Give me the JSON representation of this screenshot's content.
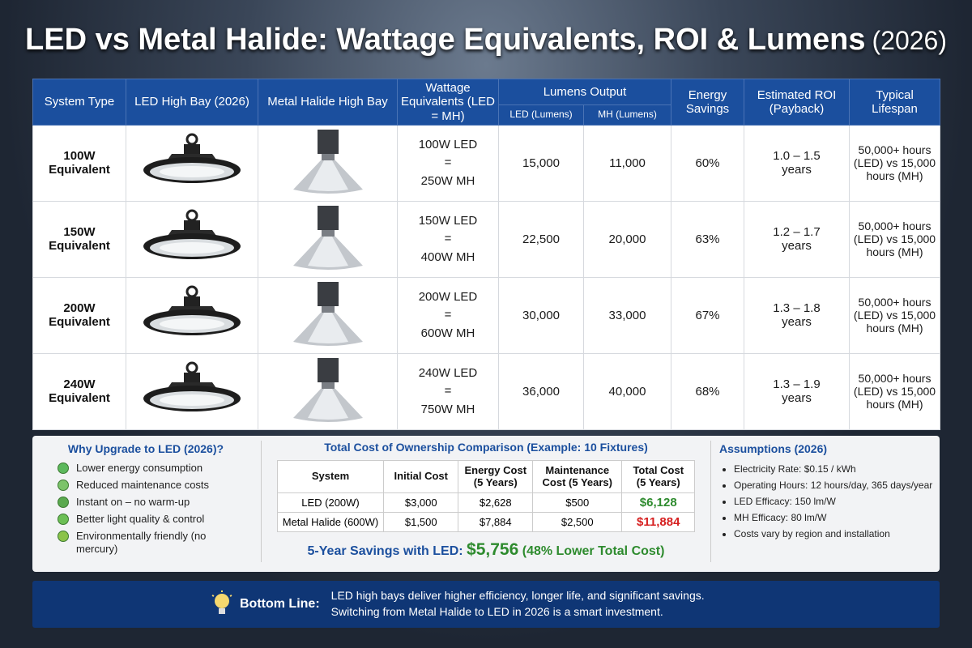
{
  "header": {
    "title": "LED vs Metal Halide: Wattage Equivalents, ROI & Lumens",
    "year": "(2026)"
  },
  "table": {
    "headers": {
      "system": "System Type",
      "led": "LED High Bay (2026)",
      "mh": "Metal Halide High Bay",
      "wattage": "Wattage Equivalents (LED = MH)",
      "lumens": "Lumens Output",
      "led_lumens": "LED (Lumens)",
      "mh_lumens": "MH (Lumens)",
      "savings": "Energy Savings",
      "roi": "Estimated ROI (Payback)",
      "lifespan": "Typical Lifespan"
    },
    "rows": [
      {
        "system": "100W Equivalent",
        "led_watts": "100W LED",
        "equals": "=",
        "mh_watts": "250W MH",
        "led_lumens": "15,000",
        "mh_lumens": "11,000",
        "savings": "60%",
        "roi": "1.0 – 1.5 years",
        "lifespan": "50,000+ hours (LED) vs 15,000 hours (MH)"
      },
      {
        "system": "150W Equivalent",
        "led_watts": "150W LED",
        "equals": "=",
        "mh_watts": "400W MH",
        "led_lumens": "22,500",
        "mh_lumens": "20,000",
        "savings": "63%",
        "roi": "1.2 – 1.7 years",
        "lifespan": "50,000+ hours (LED) vs 15,000 hours (MH)"
      },
      {
        "system": "200W Equivalent",
        "led_watts": "200W LED",
        "equals": "=",
        "mh_watts": "600W MH",
        "led_lumens": "30,000",
        "mh_lumens": "33,000",
        "savings": "67%",
        "roi": "1.3 – 1.8 years",
        "lifespan": "50,000+ hours (LED) vs 15,000 hours (MH)"
      },
      {
        "system": "240W Equivalent",
        "led_watts": "240W LED",
        "equals": "=",
        "mh_watts": "750W MH",
        "led_lumens": "36,000",
        "mh_lumens": "40,000",
        "savings": "68%",
        "roi": "1.3 – 1.9 years",
        "lifespan": "50,000+ hours (LED) vs 15,000 hours (MH)"
      }
    ]
  },
  "why": {
    "title": "Why Upgrade to LED (2026)?",
    "items": [
      "Lower energy consumption",
      "Reduced maintenance costs",
      "Instant on – no warm-up",
      "Better light quality & control",
      "Environmentally friendly (no mercury)"
    ]
  },
  "tco": {
    "title": "Total Cost of Ownership Comparison (Example: 10 Fixtures)",
    "headers": [
      "System",
      "Initial Cost",
      "Energy Cost (5 Years)",
      "Maintenance Cost (5 Years)",
      "Total Cost (5 Years)"
    ],
    "rows": [
      [
        "LED (200W)",
        "$3,000",
        "$2,628",
        "$500",
        "$6,128"
      ],
      [
        "Metal Halide (600W)",
        "$1,500",
        "$7,884",
        "$2,500",
        "$11,884"
      ]
    ],
    "savings_label": "5-Year Savings with LED:",
    "savings_value": "$5,756",
    "savings_note": "(48% Lower Total Cost)"
  },
  "assumptions": {
    "title": "Assumptions (2026)",
    "items": [
      "Electricity Rate: $0.15 / kWh",
      "Operating Hours: 12 hours/day, 365 days/year",
      "LED Efficacy: 150 lm/W",
      "MH Efficacy: 80 lm/W",
      "Costs vary by region and installation"
    ]
  },
  "bottom_line": {
    "label": "Bottom Line:",
    "lines": [
      "LED high bays deliver higher efficiency, longer life, and significant savings.",
      "Switching from Metal Halide to LED in 2026 is a smart investment."
    ]
  }
}
